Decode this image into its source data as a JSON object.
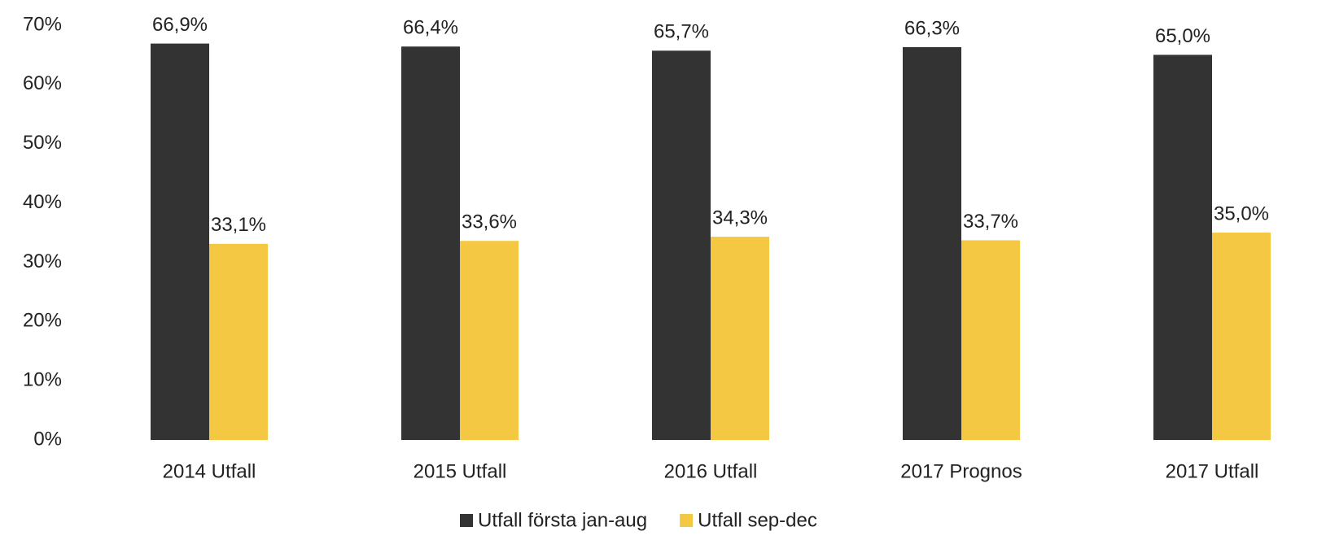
{
  "chart_data": {
    "type": "bar",
    "categories": [
      "2014 Utfall",
      "2015 Utfall",
      "2016 Utfall",
      "2017 Prognos",
      "2017 Utfall"
    ],
    "series": [
      {
        "name": "Utfall första jan-aug",
        "color": "#333333",
        "values": [
          66.9,
          66.4,
          65.7,
          66.3,
          65.0
        ],
        "value_labels": [
          "66,9%",
          "66,4%",
          "65,7%",
          "66,3%",
          "65,0%"
        ]
      },
      {
        "name": "Utfall sep-dec",
        "color": "#f4c842",
        "values": [
          33.1,
          33.6,
          34.3,
          33.7,
          35.0
        ],
        "value_labels": [
          "33,1%",
          "33,6%",
          "34,3%",
          "33,7%",
          "35,0%"
        ]
      }
    ],
    "ylim": [
      0,
      70
    ],
    "yticks": [
      {
        "value": 0,
        "label": "0%"
      },
      {
        "value": 10,
        "label": "10%"
      },
      {
        "value": 20,
        "label": "20%"
      },
      {
        "value": 30,
        "label": "30%"
      },
      {
        "value": 40,
        "label": "40%"
      },
      {
        "value": 50,
        "label": "50%"
      },
      {
        "value": 60,
        "label": "60%"
      },
      {
        "value": 70,
        "label": "70%"
      }
    ],
    "grid": false,
    "legend": "bottom"
  }
}
